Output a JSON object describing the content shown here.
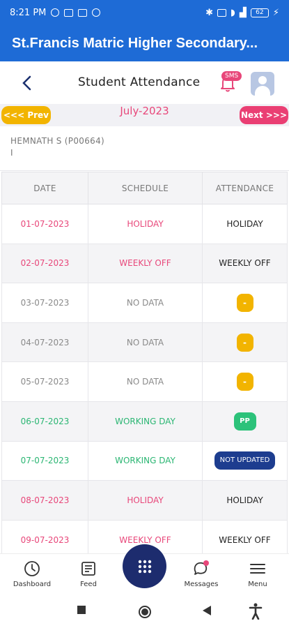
{
  "status_bar": {
    "time": "8:21 PM",
    "battery": "62"
  },
  "app": {
    "title": "St.Francis Matric Higher Secondary..."
  },
  "header": {
    "title": "Student Attendance",
    "sms_badge": "SMS"
  },
  "month_nav": {
    "prev_label": "<<< Prev",
    "month": "July-2023",
    "next_label": "Next >>>"
  },
  "student": {
    "name": "HEMNATH S (P00664)",
    "class": "I"
  },
  "table": {
    "columns": [
      "DATE",
      "SCHEDULE",
      "ATTENDANCE"
    ],
    "rows": [
      {
        "date": "01-07-2023",
        "schedule": "HOLIDAY",
        "attendance": "HOLIDAY"
      },
      {
        "date": "02-07-2023",
        "schedule": "WEEKLY OFF",
        "attendance": "WEEKLY OFF"
      },
      {
        "date": "03-07-2023",
        "schedule": "NO DATA",
        "attendance": "-"
      },
      {
        "date": "04-07-2023",
        "schedule": "NO DATA",
        "attendance": "-"
      },
      {
        "date": "05-07-2023",
        "schedule": "NO DATA",
        "attendance": "-"
      },
      {
        "date": "06-07-2023",
        "schedule": "WORKING DAY",
        "attendance": "PP"
      },
      {
        "date": "07-07-2023",
        "schedule": "WORKING DAY",
        "attendance": "NOT UPDATED"
      },
      {
        "date": "08-07-2023",
        "schedule": "HOLIDAY",
        "attendance": "HOLIDAY"
      },
      {
        "date": "09-07-2023",
        "schedule": "WEEKLY OFF",
        "attendance": "WEEKLY OFF"
      }
    ]
  },
  "bottom_nav": {
    "dashboard": "Dashboard",
    "feed": "Feed",
    "messages": "Messages",
    "menu": "Menu"
  },
  "colors": {
    "primary": "#1e6bd6",
    "holiday": "#e8477a",
    "working": "#2bb673",
    "prev": "#f2b400",
    "next": "#ea3f73",
    "not_updated": "#1d3d8f"
  }
}
